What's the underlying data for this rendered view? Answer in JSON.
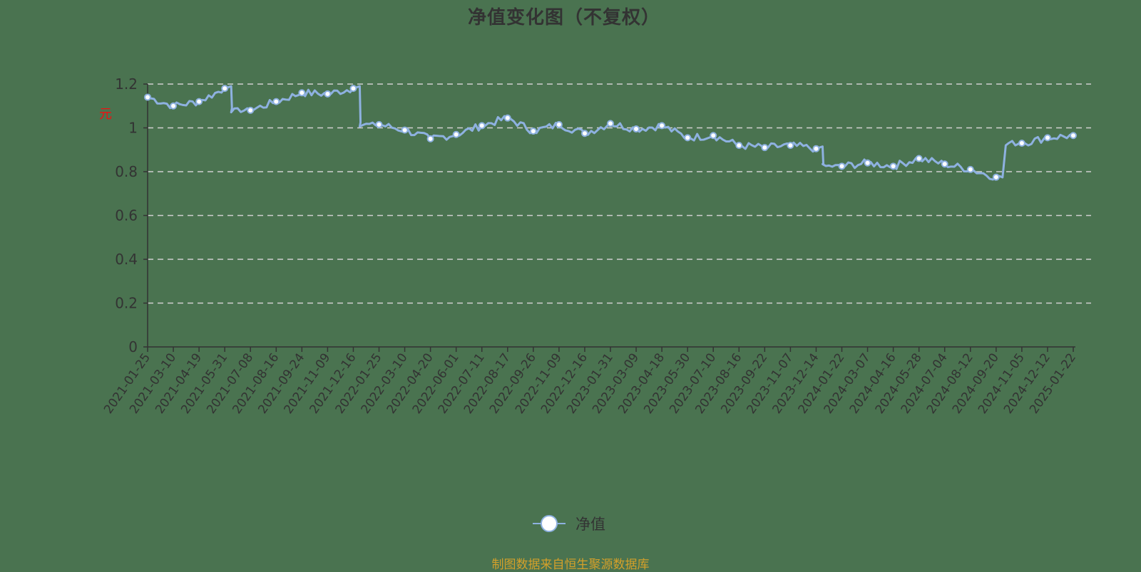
{
  "title": "净值变化图（不复权）",
  "footer": {
    "source": "制图数据来自恒生聚源数据库"
  },
  "legend": {
    "series_label": "净值",
    "icon": "circle-line-marker-icon"
  },
  "colors": {
    "background": "#4a7350",
    "line": "#8eb1e0",
    "marker_fill": "#ffffff",
    "grid": "#d0d0d0",
    "axis": "#333333",
    "source_text": "#d4a02a",
    "ylabel": "#ee1111"
  },
  "chart_data": {
    "type": "line",
    "title": "净值变化图（不复权）",
    "xlabel": "",
    "ylabel": "元",
    "ylim": [
      0,
      1.2
    ],
    "yticks": [
      "0",
      "0.2",
      "0.4",
      "0.6",
      "0.8",
      "1",
      "1.2"
    ],
    "grid": true,
    "legend_position": "bottom",
    "categories": [
      "2021-01-25",
      "2021-03-10",
      "2021-04-19",
      "2021-05-31",
      "2021-07-08",
      "2021-08-16",
      "2021-09-24",
      "2021-11-09",
      "2021-12-16",
      "2022-01-25",
      "2022-03-10",
      "2022-04-20",
      "2022-06-01",
      "2022-07-11",
      "2022-08-17",
      "2022-09-26",
      "2022-11-09",
      "2022-12-16",
      "2023-01-31",
      "2023-03-09",
      "2023-04-18",
      "2023-05-30",
      "2023-07-10",
      "2023-08-16",
      "2023-09-22",
      "2023-11-07",
      "2023-12-14",
      "2024-01-22",
      "2024-03-07",
      "2024-04-16",
      "2024-05-28",
      "2024-07-04",
      "2024-08-12",
      "2024-09-20",
      "2024-11-05",
      "2024-12-12",
      "2025-01-22"
    ],
    "series": [
      {
        "name": "净值",
        "values": [
          1.14,
          1.1,
          1.12,
          1.18,
          1.08,
          1.12,
          1.16,
          1.155,
          1.18,
          1.015,
          0.99,
          0.95,
          0.97,
          1.01,
          1.045,
          0.985,
          1.015,
          0.975,
          1.02,
          0.995,
          1.01,
          0.955,
          0.965,
          0.92,
          0.91,
          0.92,
          0.905,
          0.825,
          0.84,
          0.825,
          0.86,
          0.835,
          0.81,
          0.775,
          0.93,
          0.955,
          0.965
        ]
      }
    ]
  }
}
